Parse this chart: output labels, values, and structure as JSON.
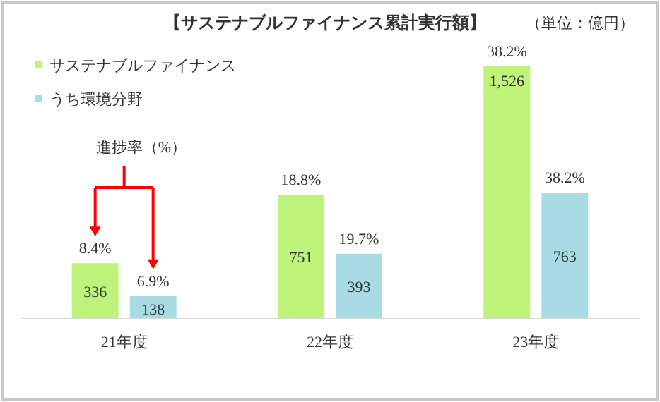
{
  "chart_data": {
    "type": "bar",
    "title": "【サステナブルファイナンス累計実行額】",
    "categories": [
      "21年度",
      "22年度",
      "23年度"
    ],
    "series": [
      {
        "name": "サステナブルファイナンス",
        "color": "#bff47a",
        "values": [
          336,
          751,
          1526
        ],
        "value_labels": [
          "336",
          "751",
          "1,526"
        ]
      },
      {
        "name": "うち環境分野",
        "color": "#a8dbe3",
        "values": [
          138,
          393,
          763
        ],
        "value_labels": [
          "138",
          "393",
          "763"
        ]
      }
    ],
    "legend": "top left",
    "annotations": [
      "（単位：億円）",
      "進捗率（%）",
      {
        "text": "8.4%",
        "x": "21年度",
        "y": 336
      },
      {
        "text": "6.9%",
        "x": "21年度",
        "y": 138
      },
      {
        "text": "18.8%",
        "x": "22年度",
        "y": 751
      },
      {
        "text": "19.7%",
        "x": "22年度",
        "y": 393
      },
      {
        "text": "38.2%",
        "x": "23年度",
        "y": 1526
      },
      {
        "text": "38.2%",
        "x": "23年度",
        "y": 763
      }
    ]
  }
}
